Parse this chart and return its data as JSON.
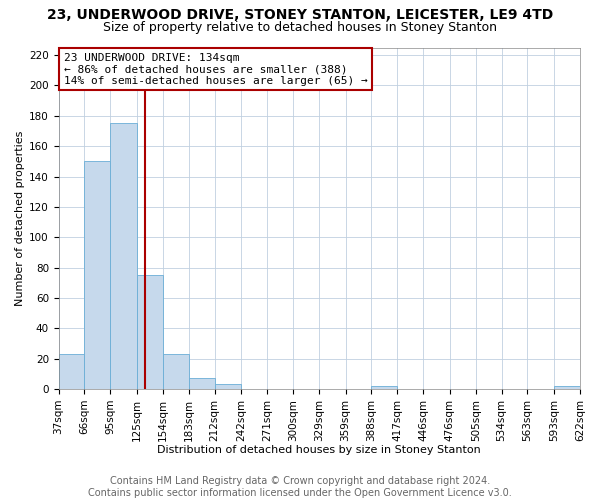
{
  "title": "23, UNDERWOOD DRIVE, STONEY STANTON, LEICESTER, LE9 4TD",
  "subtitle": "Size of property relative to detached houses in Stoney Stanton",
  "xlabel": "Distribution of detached houses by size in Stoney Stanton",
  "ylabel": "Number of detached properties",
  "footer_line1": "Contains HM Land Registry data © Crown copyright and database right 2024.",
  "footer_line2": "Contains public sector information licensed under the Open Government Licence v3.0.",
  "annotation_line1": "23 UNDERWOOD DRIVE: 134sqm",
  "annotation_line2": "← 86% of detached houses are smaller (388)",
  "annotation_line3": "14% of semi-detached houses are larger (65) →",
  "bar_color": "#c6d9ec",
  "bar_edge_color": "#6aaed6",
  "ref_line_color": "#aa0000",
  "ref_line_x": 134,
  "bin_edges": [
    37,
    66,
    95,
    125,
    154,
    183,
    212,
    242,
    271,
    300,
    329,
    359,
    388,
    417,
    446,
    476,
    505,
    534,
    563,
    593,
    622
  ],
  "bar_heights": [
    23,
    150,
    175,
    75,
    23,
    7,
    3,
    0,
    0,
    0,
    0,
    0,
    2,
    0,
    0,
    0,
    0,
    0,
    0,
    2
  ],
  "ylim": [
    0,
    225
  ],
  "yticks": [
    0,
    20,
    40,
    60,
    80,
    100,
    120,
    140,
    160,
    180,
    200,
    220
  ],
  "background_color": "#ffffff",
  "grid_color": "#c0d0e0",
  "title_fontsize": 10,
  "subtitle_fontsize": 9,
  "footer_fontsize": 7,
  "axis_label_fontsize": 8,
  "tick_fontsize": 7.5,
  "annotation_fontsize": 8
}
